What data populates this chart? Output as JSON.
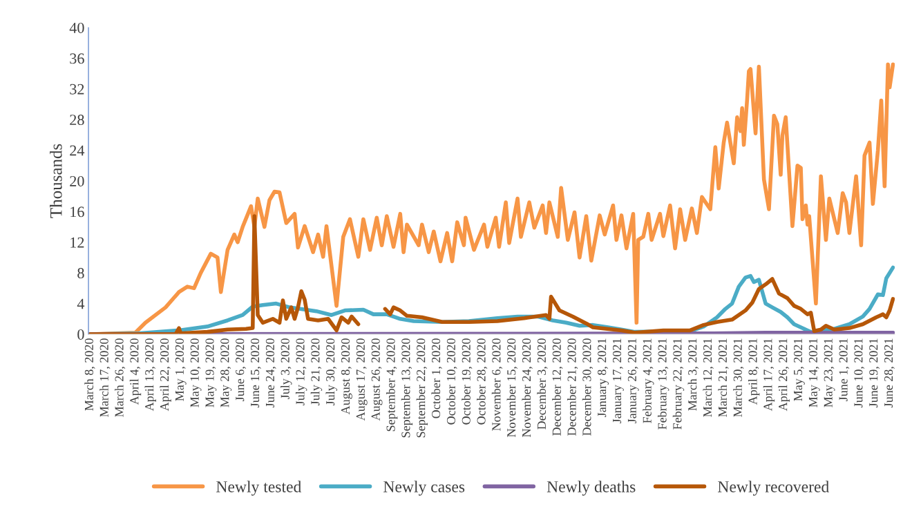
{
  "chart_data": {
    "type": "line",
    "ylabel": "Thousands",
    "ylim": [
      0,
      40
    ],
    "yticks": [
      0,
      4,
      8,
      12,
      16,
      20,
      24,
      28,
      32,
      36,
      40
    ],
    "xlim": [
      "2020-03-07",
      "2021-07-01"
    ],
    "xticks": [
      {
        "value": "2020-03-08",
        "label": "March 8, 2020"
      },
      {
        "value": "2020-03-17",
        "label": "March 17, 2020"
      },
      {
        "value": "2020-03-26",
        "label": "March 26, 2020"
      },
      {
        "value": "2020-04-04",
        "label": "April 4, 2020"
      },
      {
        "value": "2020-04-13",
        "label": "April 13, 2020"
      },
      {
        "value": "2020-04-22",
        "label": "April 22, 2020"
      },
      {
        "value": "2020-05-01",
        "label": "May 1, 2020"
      },
      {
        "value": "2020-05-10",
        "label": "May 10, 2020"
      },
      {
        "value": "2020-05-19",
        "label": "May 19, 2020"
      },
      {
        "value": "2020-05-28",
        "label": "May 28, 2020"
      },
      {
        "value": "2020-06-06",
        "label": "June 6, 2020"
      },
      {
        "value": "2020-06-15",
        "label": "June 15, 2020"
      },
      {
        "value": "2020-06-24",
        "label": "June 24, 2020"
      },
      {
        "value": "2020-07-03",
        "label": "July 3, 2020"
      },
      {
        "value": "2020-07-12",
        "label": "July 12, 2020"
      },
      {
        "value": "2020-07-21",
        "label": "July 21, 2020"
      },
      {
        "value": "2020-07-30",
        "label": "July 30, 2020"
      },
      {
        "value": "2020-08-08",
        "label": "August 8, 2020"
      },
      {
        "value": "2020-08-17",
        "label": "August 17, 2020"
      },
      {
        "value": "2020-08-26",
        "label": "August 26, 2020"
      },
      {
        "value": "2020-09-04",
        "label": "September 4, 2020"
      },
      {
        "value": "2020-09-13",
        "label": "September 13, 2020"
      },
      {
        "value": "2020-09-22",
        "label": "September 22, 2020"
      },
      {
        "value": "2020-10-01",
        "label": "October 1, 2020"
      },
      {
        "value": "2020-10-10",
        "label": "October 10, 2020"
      },
      {
        "value": "2020-10-19",
        "label": "October 19, 2020"
      },
      {
        "value": "2020-10-28",
        "label": "October 28, 2020"
      },
      {
        "value": "2020-11-06",
        "label": "November 6, 2020"
      },
      {
        "value": "2020-11-15",
        "label": "November 15, 2020"
      },
      {
        "value": "2020-11-24",
        "label": "November 24, 2020"
      },
      {
        "value": "2020-12-03",
        "label": "December 3, 2020"
      },
      {
        "value": "2020-12-12",
        "label": "December 12, 2020"
      },
      {
        "value": "2020-12-21",
        "label": "December 21, 2020"
      },
      {
        "value": "2020-12-30",
        "label": "December 30, 2020"
      },
      {
        "value": "2021-01-08",
        "label": "January 8, 2021"
      },
      {
        "value": "2021-01-17",
        "label": "January 17, 2021"
      },
      {
        "value": "2021-01-26",
        "label": "January 26, 2021"
      },
      {
        "value": "2021-02-04",
        "label": "February 4, 2021"
      },
      {
        "value": "2021-02-13",
        "label": "February 13, 2021"
      },
      {
        "value": "2021-02-22",
        "label": "February 22, 2021"
      },
      {
        "value": "2021-03-03",
        "label": "March 3, 2021"
      },
      {
        "value": "2021-03-12",
        "label": "March 12, 2021"
      },
      {
        "value": "2021-03-21",
        "label": "March 21, 2021"
      },
      {
        "value": "2021-03-30",
        "label": "March 30, 2021"
      },
      {
        "value": "2021-04-08",
        "label": "April 8, 2021"
      },
      {
        "value": "2021-04-17",
        "label": "April 17, 2021"
      },
      {
        "value": "2021-04-26",
        "label": "April 26, 2021"
      },
      {
        "value": "2021-05-05",
        "label": "May 5, 2021"
      },
      {
        "value": "2021-05-14",
        "label": "May 14, 2021"
      },
      {
        "value": "2021-05-23",
        "label": "May 23, 2021"
      },
      {
        "value": "2021-06-01",
        "label": "June 1, 2021"
      },
      {
        "value": "2021-06-10",
        "label": "June 10, 2021"
      },
      {
        "value": "2021-06-19",
        "label": "June 19, 2021"
      },
      {
        "value": "2021-06-28",
        "label": "June 28, 2021"
      }
    ],
    "grid": false,
    "legend": "bottom",
    "marker": "none",
    "line_style": "solid",
    "series": [
      {
        "name": "Newly tested",
        "color": "#f79646",
        "x": [
          "2020-03-08",
          "2020-04-04",
          "2020-04-10",
          "2020-04-22",
          "2020-04-30",
          "2020-05-05",
          "2020-05-09",
          "2020-05-13",
          "2020-05-19",
          "2020-05-23",
          "2020-05-25",
          "2020-05-29",
          "2020-06-02",
          "2020-06-04",
          "2020-06-07",
          "2020-06-12",
          "2020-06-14",
          "2020-06-16",
          "2020-06-20",
          "2020-06-23",
          "2020-06-26",
          "2020-06-29",
          "2020-07-03",
          "2020-07-08",
          "2020-07-10",
          "2020-07-14",
          "2020-07-19",
          "2020-07-22",
          "2020-07-25",
          "2020-07-27",
          "2020-08-02",
          "2020-08-06",
          "2020-08-10",
          "2020-08-15",
          "2020-08-18",
          "2020-08-22",
          "2020-08-26",
          "2020-08-29",
          "2020-09-01",
          "2020-09-05",
          "2020-09-09",
          "2020-09-11",
          "2020-09-13",
          "2020-09-20",
          "2020-09-22",
          "2020-09-26",
          "2020-09-29",
          "2020-10-03",
          "2020-10-07",
          "2020-10-10",
          "2020-10-13",
          "2020-10-17",
          "2020-10-18",
          "2020-10-23",
          "2020-10-29",
          "2020-10-31",
          "2020-11-05",
          "2020-11-07",
          "2020-11-11",
          "2020-11-13",
          "2020-11-18",
          "2020-11-20",
          "2020-11-25",
          "2020-11-28",
          "2020-12-03",
          "2020-12-05",
          "2020-12-07",
          "2020-12-12",
          "2020-12-14",
          "2020-12-18",
          "2020-12-22",
          "2020-12-25",
          "2020-12-29",
          "2021-01-01",
          "2021-01-06",
          "2021-01-09",
          "2021-01-14",
          "2021-01-16",
          "2021-01-19",
          "2021-01-22",
          "2021-01-26",
          "2021-01-28",
          "2021-01-29",
          "2021-02-01",
          "2021-02-04",
          "2021-02-06",
          "2021-02-11",
          "2021-02-13",
          "2021-02-17",
          "2021-02-20",
          "2021-02-23",
          "2021-02-26",
          "2021-03-02",
          "2021-03-05",
          "2021-03-08",
          "2021-03-13",
          "2021-03-16",
          "2021-03-18",
          "2021-03-21",
          "2021-03-23",
          "2021-03-27",
          "2021-03-29",
          "2021-03-31",
          "2021-04-01",
          "2021-04-02",
          "2021-04-04",
          "2021-04-05",
          "2021-04-06",
          "2021-04-09",
          "2021-04-11",
          "2021-04-14",
          "2021-04-17",
          "2021-04-20",
          "2021-04-22",
          "2021-04-24",
          "2021-04-25",
          "2021-04-27",
          "2021-05-01",
          "2021-05-04",
          "2021-05-06",
          "2021-05-07",
          "2021-05-09",
          "2021-05-10",
          "2021-05-11",
          "2021-05-15",
          "2021-05-18",
          "2021-05-21",
          "2021-05-23",
          "2021-05-28",
          "2021-05-31",
          "2021-06-02",
          "2021-06-04",
          "2021-06-08",
          "2021-06-11",
          "2021-06-13",
          "2021-06-16",
          "2021-06-18",
          "2021-06-21",
          "2021-06-23",
          "2021-06-25",
          "2021-06-27",
          "2021-06-28",
          "2021-06-30"
        ],
        "values": [
          0,
          0.2,
          1.5,
          3.5,
          5.5,
          6.2,
          6,
          8,
          10.5,
          10,
          5.5,
          11,
          13,
          12,
          14,
          16.7,
          14,
          17.7,
          14,
          17.5,
          18.6,
          18.5,
          14.5,
          15.7,
          11.3,
          14.1,
          10.7,
          13,
          10.1,
          14.1,
          3.7,
          12.7,
          15,
          10.1,
          15,
          11,
          15.2,
          11.6,
          15.4,
          11.4,
          15.7,
          10.7,
          14.3,
          11.6,
          14.3,
          10.7,
          13.4,
          9.5,
          13.2,
          9.5,
          14.6,
          11.6,
          15.2,
          11,
          14.3,
          11.4,
          15.2,
          11.4,
          17.2,
          11.9,
          17.7,
          12.7,
          17.2,
          13.9,
          16.8,
          13.2,
          17.2,
          12.7,
          19.1,
          12.3,
          15.9,
          10,
          15.4,
          9.6,
          15.5,
          13,
          16.8,
          12.3,
          15.5,
          11.2,
          15.7,
          1.5,
          12.3,
          12.7,
          15.7,
          12.3,
          15.7,
          12.8,
          16.8,
          11.2,
          16.3,
          12.3,
          16.4,
          13.2,
          17.9,
          16.3,
          24.4,
          19,
          25,
          27.6,
          22.3,
          28.3,
          26.5,
          29.5,
          24.7,
          30.7,
          34.3,
          34.6,
          26.2,
          34.9,
          20.2,
          16.3,
          28.5,
          27.4,
          20.8,
          25.9,
          28.3,
          14.1,
          22,
          21.7,
          15,
          16.8,
          14.3,
          15.4,
          4,
          20.6,
          12.3,
          17.7,
          13.2,
          18.4,
          17.2,
          13.2,
          20.6,
          11.6,
          23.3,
          25,
          17,
          24,
          30.5,
          19.3,
          35.2,
          32.2,
          35.2
        ]
      },
      {
        "name": "Newly cases",
        "color": "#4bacc6",
        "x": [
          "2020-03-08",
          "2020-04-06",
          "2020-04-30",
          "2020-05-17",
          "2020-05-29",
          "2020-06-07",
          "2020-06-13",
          "2020-06-19",
          "2020-06-27",
          "2020-07-05",
          "2020-07-21",
          "2020-07-30",
          "2020-08-07",
          "2020-08-18",
          "2020-08-24",
          "2020-09-01",
          "2020-09-09",
          "2020-09-17",
          "2020-10-04",
          "2020-10-20",
          "2020-11-06",
          "2020-11-18",
          "2020-11-30",
          "2020-12-09",
          "2020-12-17",
          "2020-12-25",
          "2021-01-02",
          "2021-01-11",
          "2021-01-19",
          "2021-01-27",
          "2021-03-01",
          "2021-03-09",
          "2021-03-13",
          "2021-03-17",
          "2021-03-22",
          "2021-03-26",
          "2021-03-30",
          "2021-04-03",
          "2021-04-06",
          "2021-04-08",
          "2021-04-11",
          "2021-04-15",
          "2021-04-19",
          "2021-04-24",
          "2021-04-28",
          "2021-05-02",
          "2021-05-06",
          "2021-05-10",
          "2021-05-14",
          "2021-05-18",
          "2021-05-26",
          "2021-06-04",
          "2021-06-12",
          "2021-06-16",
          "2021-06-21",
          "2021-06-24",
          "2021-06-26",
          "2021-06-30"
        ],
        "values": [
          0,
          0.1,
          0.5,
          1,
          1.8,
          2.5,
          3.6,
          3.8,
          4,
          3.5,
          3,
          2.5,
          3.1,
          3.2,
          2.6,
          2.6,
          2,
          1.7,
          1.6,
          1.7,
          2.1,
          2.3,
          2.3,
          1.8,
          1.5,
          1.1,
          1.2,
          0.9,
          0.6,
          0.3,
          0.4,
          1,
          1.6,
          2.2,
          3.3,
          4,
          6.2,
          7.4,
          7.6,
          6.8,
          7.1,
          4,
          3.5,
          2.9,
          2.2,
          1.3,
          0.9,
          0.5,
          0.1,
          0.6,
          0.7,
          1.3,
          2.3,
          3.3,
          5.2,
          5.1,
          7.3,
          8.7
        ]
      },
      {
        "name": "Newly deaths",
        "color": "#8064a2",
        "x": [
          "2020-03-08",
          "2021-03-15",
          "2021-04-15",
          "2021-06-30"
        ],
        "values": [
          0,
          0.1,
          0.2,
          0.2
        ]
      },
      {
        "name": "Newly recovered",
        "color": "#b65708",
        "x": [
          "2020-03-08",
          "2020-04-28",
          "2020-04-30",
          "2020-05-01",
          "2020-05-17",
          "2020-05-29",
          "2020-06-09",
          "2020-06-13",
          "2020-06-14",
          "2020-06-16",
          "2020-06-19",
          "2020-06-25",
          "2020-06-29",
          "2020-07-01",
          "2020-07-03",
          "2020-07-06",
          "2020-07-08",
          "2020-07-10",
          "2020-07-12",
          "2020-07-14",
          "2020-07-16",
          "2020-07-22",
          "2020-07-28",
          "2020-08-02",
          "2020-08-05",
          "2020-08-09",
          "2020-08-11",
          "2020-08-15",
          "2020-08-22",
          "2020-08-31",
          "2020-09-03",
          "2020-09-05",
          "2020-09-09",
          "2020-09-13",
          "2020-09-22",
          "2020-10-04",
          "2020-10-20",
          "2020-11-06",
          "2020-11-22",
          "2020-12-05",
          "2020-12-07",
          "2020-12-08",
          "2020-12-13",
          "2020-12-21",
          "2020-12-29",
          "2021-01-02",
          "2021-01-19",
          "2021-01-27",
          "2021-02-13",
          "2021-03-01",
          "2021-03-09",
          "2021-03-17",
          "2021-03-26",
          "2021-04-03",
          "2021-04-07",
          "2021-04-11",
          "2021-04-15",
          "2021-04-19",
          "2021-04-23",
          "2021-04-28",
          "2021-05-02",
          "2021-05-06",
          "2021-05-10",
          "2021-05-12",
          "2021-05-14",
          "2021-05-18",
          "2021-05-21",
          "2021-05-26",
          "2021-06-04",
          "2021-06-12",
          "2021-06-20",
          "2021-06-24",
          "2021-06-26",
          "2021-06-28",
          "2021-06-30"
        ],
        "values": [
          0,
          0,
          0.8,
          0.1,
          0.3,
          0.6,
          0.7,
          0.8,
          15.4,
          2.5,
          1.5,
          2,
          1.5,
          4.4,
          2,
          3.5,
          2,
          3.5,
          5.6,
          4.5,
          2,
          1.8,
          2,
          0.5,
          2.2,
          1.5,
          2.3,
          1.3,
          null,
          3.3,
          2.6,
          3.5,
          3.1,
          2.4,
          2.2,
          1.6,
          1.6,
          1.7,
          2.1,
          2.5,
          2,
          4.9,
          3.1,
          2.3,
          1.4,
          0.9,
          0.5,
          0.2,
          0.5,
          0.5,
          1.2,
          1.6,
          1.9,
          3.1,
          4.1,
          5.9,
          6.5,
          7.2,
          5.3,
          4.7,
          3.7,
          3.3,
          2.6,
          2.8,
          0.4,
          0.6,
          1.1,
          0.6,
          0.8,
          1.3,
          2.2,
          2.6,
          2.2,
          3.1,
          4.6
        ]
      }
    ]
  }
}
